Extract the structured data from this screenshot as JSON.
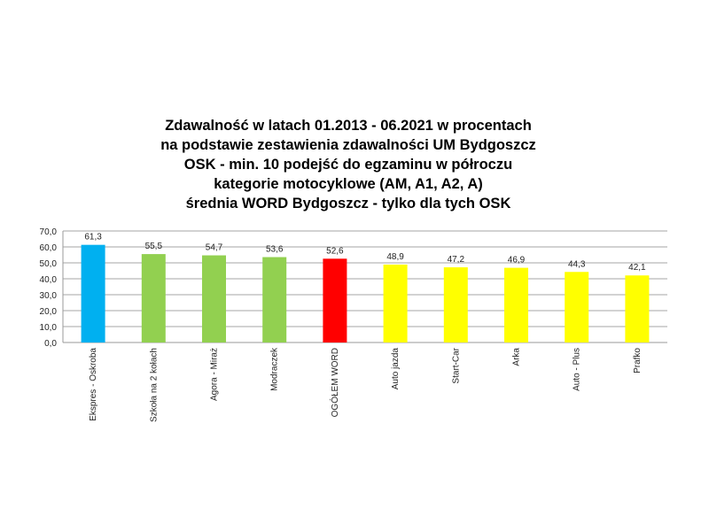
{
  "chart_data": {
    "type": "bar",
    "title_lines": [
      "Zdawalność w latach 01.2013 - 06.2021 w procentach",
      "na podstawie zestawienia zdawalności UM Bydgoszcz",
      "OSK - min. 10 podejść do egzaminu w półroczu",
      "kategorie motocyklowe (AM, A1, A2, A)",
      "średnia WORD Bydgoszcz - tylko dla tych OSK"
    ],
    "categories": [
      "Ekspres - Oskroba",
      "Szkoła na 2 kołach",
      "Agora - Miraż",
      "Modraczek",
      "OGÓŁEM WORD",
      "Auto jazda",
      "Start-Car",
      "Arka",
      "Auto - Plus",
      "Prafko"
    ],
    "values": [
      61.3,
      55.5,
      54.7,
      53.6,
      52.6,
      48.9,
      47.2,
      46.9,
      44.3,
      42.1
    ],
    "data_labels": [
      "61,3",
      "55,5",
      "54,7",
      "53,6",
      "52,6",
      "48,9",
      "47,2",
      "46,9",
      "44,3",
      "42,1"
    ],
    "colors": [
      "#00b0f0",
      "#92d050",
      "#92d050",
      "#92d050",
      "#ff0000",
      "#ffff00",
      "#ffff00",
      "#ffff00",
      "#ffff00",
      "#ffff00"
    ],
    "ylim": [
      0,
      70
    ],
    "yticks": [
      "0,0",
      "10,0",
      "20,0",
      "30,0",
      "40,0",
      "50,0",
      "60,0",
      "70,0"
    ],
    "grid": true,
    "legend": "none",
    "xlabel": "",
    "ylabel": ""
  }
}
